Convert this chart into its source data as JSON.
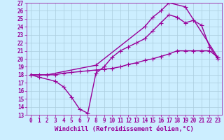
{
  "xlabel": "Windchill (Refroidissement éolien,°C)",
  "background_color": "#cceeff",
  "line_color": "#990099",
  "xlim": [
    -0.5,
    23.5
  ],
  "ylim": [
    13,
    27
  ],
  "xticks": [
    0,
    1,
    2,
    3,
    4,
    5,
    6,
    7,
    8,
    9,
    10,
    11,
    12,
    13,
    14,
    15,
    16,
    17,
    18,
    19,
    20,
    21,
    22,
    23
  ],
  "yticks": [
    13,
    14,
    15,
    16,
    17,
    18,
    19,
    20,
    21,
    22,
    23,
    24,
    25,
    26,
    27
  ],
  "line1_x": [
    0,
    1,
    3,
    4,
    5,
    6,
    7,
    8,
    9,
    10,
    11,
    12,
    13,
    14,
    15,
    16,
    17,
    18,
    19,
    20,
    21,
    22,
    23
  ],
  "line1_y": [
    18,
    17.7,
    17.2,
    16.5,
    15.2,
    13.7,
    13.2,
    18.2,
    19.0,
    20.2,
    21.0,
    21.5,
    22.0,
    22.5,
    23.5,
    24.5,
    25.5,
    25.2,
    24.5,
    24.8,
    24.2,
    21.5,
    20.0
  ],
  "line2_x": [
    0,
    1,
    2,
    3,
    4,
    5,
    6,
    7,
    8,
    9,
    10,
    11,
    12,
    13,
    14,
    15,
    16,
    17,
    18,
    19,
    20,
    21,
    22,
    23
  ],
  "line2_y": [
    18,
    18,
    18,
    18,
    18.2,
    18.3,
    18.4,
    18.5,
    18.6,
    18.7,
    18.8,
    19.0,
    19.3,
    19.5,
    19.8,
    20.0,
    20.3,
    20.6,
    21.0,
    21.0,
    21.0,
    21.0,
    21.0,
    20.2
  ],
  "line3_x": [
    0,
    2,
    8,
    14,
    15,
    16,
    17,
    19,
    23
  ],
  "line3_y": [
    18,
    18,
    19.2,
    24.0,
    25.2,
    26.0,
    27.0,
    26.5,
    20.2
  ],
  "marker": "+",
  "markersize": 5,
  "linewidth": 1.0,
  "grid_color": "#aaccdd",
  "tick_fontsize": 5.5,
  "xlabel_fontsize": 6.5
}
